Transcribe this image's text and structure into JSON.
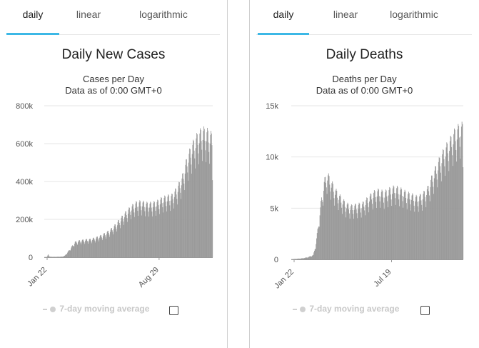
{
  "panels": [
    {
      "tabs": [
        "daily",
        "linear",
        "logarithmic"
      ],
      "active_tab": "daily",
      "legend_label": "7-day moving average",
      "chart_data": {
        "type": "bar",
        "title": "Daily New Cases",
        "subtitle": "Cases per Day",
        "subtitle2": "Data as of 0:00 GMT+0",
        "ylim": [
          0,
          800000
        ],
        "yticks": [
          0,
          200000,
          400000,
          600000,
          800000
        ],
        "ytick_labels": [
          "0",
          "200k",
          "400k",
          "600k",
          "800k"
        ],
        "xtick_labels": [
          "Jan 22",
          "Aug 29"
        ],
        "xtick_index": [
          0,
          220
        ],
        "series_points": [
          [
            0,
            600
          ],
          [
            5,
            1500
          ],
          [
            7,
            15000
          ],
          [
            10,
            2500
          ],
          [
            20,
            2000
          ],
          [
            35,
            3000
          ],
          [
            40,
            8000
          ],
          [
            50,
            40000
          ],
          [
            60,
            75000
          ],
          [
            70,
            82000
          ],
          [
            80,
            86000
          ],
          [
            90,
            88000
          ],
          [
            100,
            95000
          ],
          [
            110,
            105000
          ],
          [
            120,
            118000
          ],
          [
            130,
            135000
          ],
          [
            140,
            160000
          ],
          [
            150,
            190000
          ],
          [
            160,
            220000
          ],
          [
            170,
            245000
          ],
          [
            180,
            265000
          ],
          [
            190,
            270000
          ],
          [
            200,
            262000
          ],
          [
            210,
            262000
          ],
          [
            220,
            268000
          ],
          [
            230,
            285000
          ],
          [
            240,
            295000
          ],
          [
            250,
            300000
          ],
          [
            260,
            335000
          ],
          [
            270,
            385000
          ],
          [
            280,
            480000
          ],
          [
            290,
            545000
          ],
          [
            300,
            590000
          ],
          [
            310,
            620000
          ],
          [
            320,
            610000
          ],
          [
            330,
            590000
          ]
        ],
        "max_value": 730000,
        "count": 331
      }
    },
    {
      "tabs": [
        "daily",
        "linear",
        "logarithmic"
      ],
      "active_tab": "daily",
      "legend_label": "7-day moving average",
      "chart_data": {
        "type": "bar",
        "title": "Daily Deaths",
        "subtitle": "Deaths per Day",
        "subtitle2": "Data as of 0:00 GMT+0",
        "ylim": [
          0,
          15000
        ],
        "yticks": [
          0,
          5000,
          10000,
          15000
        ],
        "ytick_labels": [
          "0",
          "5k",
          "10k",
          "15k"
        ],
        "xtick_labels": [
          "Jan 22",
          "Jul 19"
        ],
        "xtick_index": [
          0,
          179
        ],
        "series_points": [
          [
            0,
            20
          ],
          [
            10,
            60
          ],
          [
            20,
            100
          ],
          [
            30,
            200
          ],
          [
            40,
            400
          ],
          [
            45,
            1500
          ],
          [
            50,
            3500
          ],
          [
            55,
            5500
          ],
          [
            60,
            7000
          ],
          [
            65,
            7800
          ],
          [
            70,
            7300
          ],
          [
            80,
            6300
          ],
          [
            90,
            5600
          ],
          [
            100,
            5000
          ],
          [
            110,
            4800
          ],
          [
            120,
            4900
          ],
          [
            130,
            5000
          ],
          [
            140,
            5500
          ],
          [
            150,
            6000
          ],
          [
            160,
            6200
          ],
          [
            170,
            6000
          ],
          [
            180,
            6300
          ],
          [
            190,
            6500
          ],
          [
            200,
            6300
          ],
          [
            210,
            6000
          ],
          [
            220,
            5800
          ],
          [
            230,
            5600
          ],
          [
            240,
            5800
          ],
          [
            250,
            6400
          ],
          [
            260,
            7700
          ],
          [
            270,
            8800
          ],
          [
            280,
            9800
          ],
          [
            290,
            10600
          ],
          [
            300,
            11500
          ],
          [
            310,
            12000
          ]
        ],
        "max_value": 13800,
        "count": 316
      }
    }
  ]
}
